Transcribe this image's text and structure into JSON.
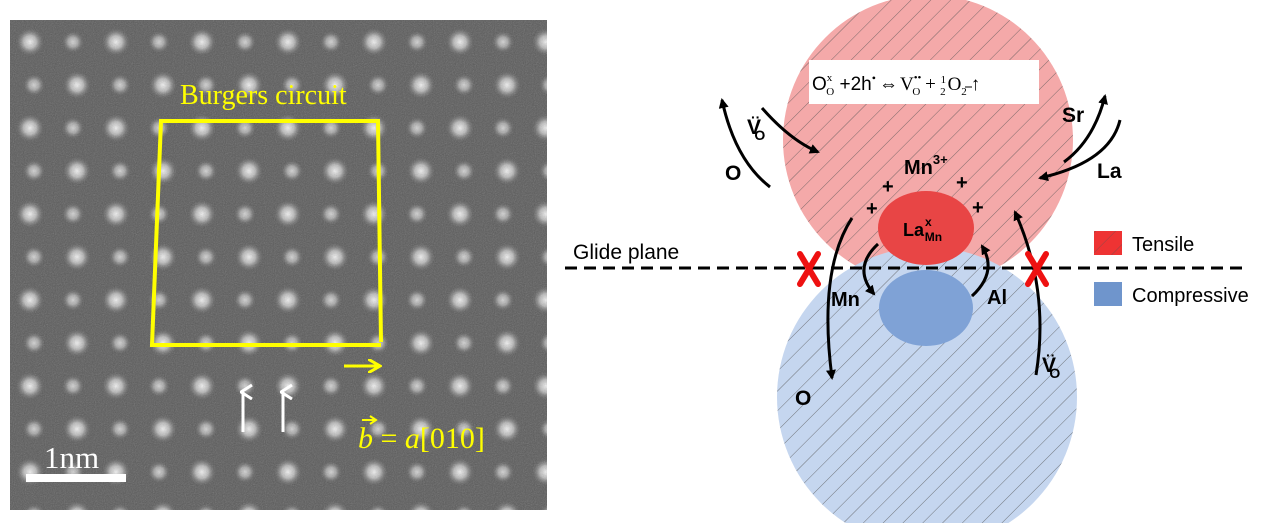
{
  "stem_panel": {
    "circuit_label": "Burgers circuit",
    "burgers_vector_symbol": "b",
    "burgers_vector_rest": " = ",
    "burgers_vector_a": "a",
    "burgers_vector_dir": "[010]",
    "scale_bar_label": "1nm",
    "circuit_color": "#ffff00",
    "up_arrow_color": "#ffffff"
  },
  "schematic": {
    "reaction": {
      "lhs_species": "O",
      "lhs_species_sup": "x",
      "lhs_species_sub": "O",
      "plus_hole": " +2h",
      "hole_dot": "•",
      "equilibrium_sign": "⇔",
      "vacancy": "V",
      "vacancy_sup": "••",
      "vacancy_sub": "O",
      "plus": " + ",
      "half_num": "1",
      "half_den": "2",
      "oxygen": "O",
      "oxygen_sub": "2",
      "gas_arrow": "↑"
    },
    "labels": {
      "vacancy_top": "V",
      "vacancy_top_sup": "··",
      "vacancy_top_sub": "O",
      "oxygen_left": "O",
      "sr": "Sr",
      "la": "La",
      "mn3": "Mn",
      "mn3_sup": "3+",
      "plus_sign": "+",
      "la_mn": "La",
      "la_mn_sup": "x",
      "la_mn_sub": "Mn",
      "glide_plane": "Glide plane",
      "mn_down": "Mn",
      "al_up": "Al",
      "oxygen_down": "O",
      "vacancy_bottom": "V",
      "vacancy_bottom_sup": "··",
      "vacancy_bottom_sub": "O"
    },
    "legend": [
      {
        "label": "Tensile",
        "color": "#ee3333"
      },
      {
        "label": "Compressive",
        "color": "#6f95cc"
      }
    ],
    "colors": {
      "tensile_fill": "#f4a9a9",
      "tensile_core": "#e84545",
      "compressive_fill": "#c5d6ef",
      "compressive_core": "#7fa2d6",
      "blocked_mark": "#ee1111"
    }
  }
}
